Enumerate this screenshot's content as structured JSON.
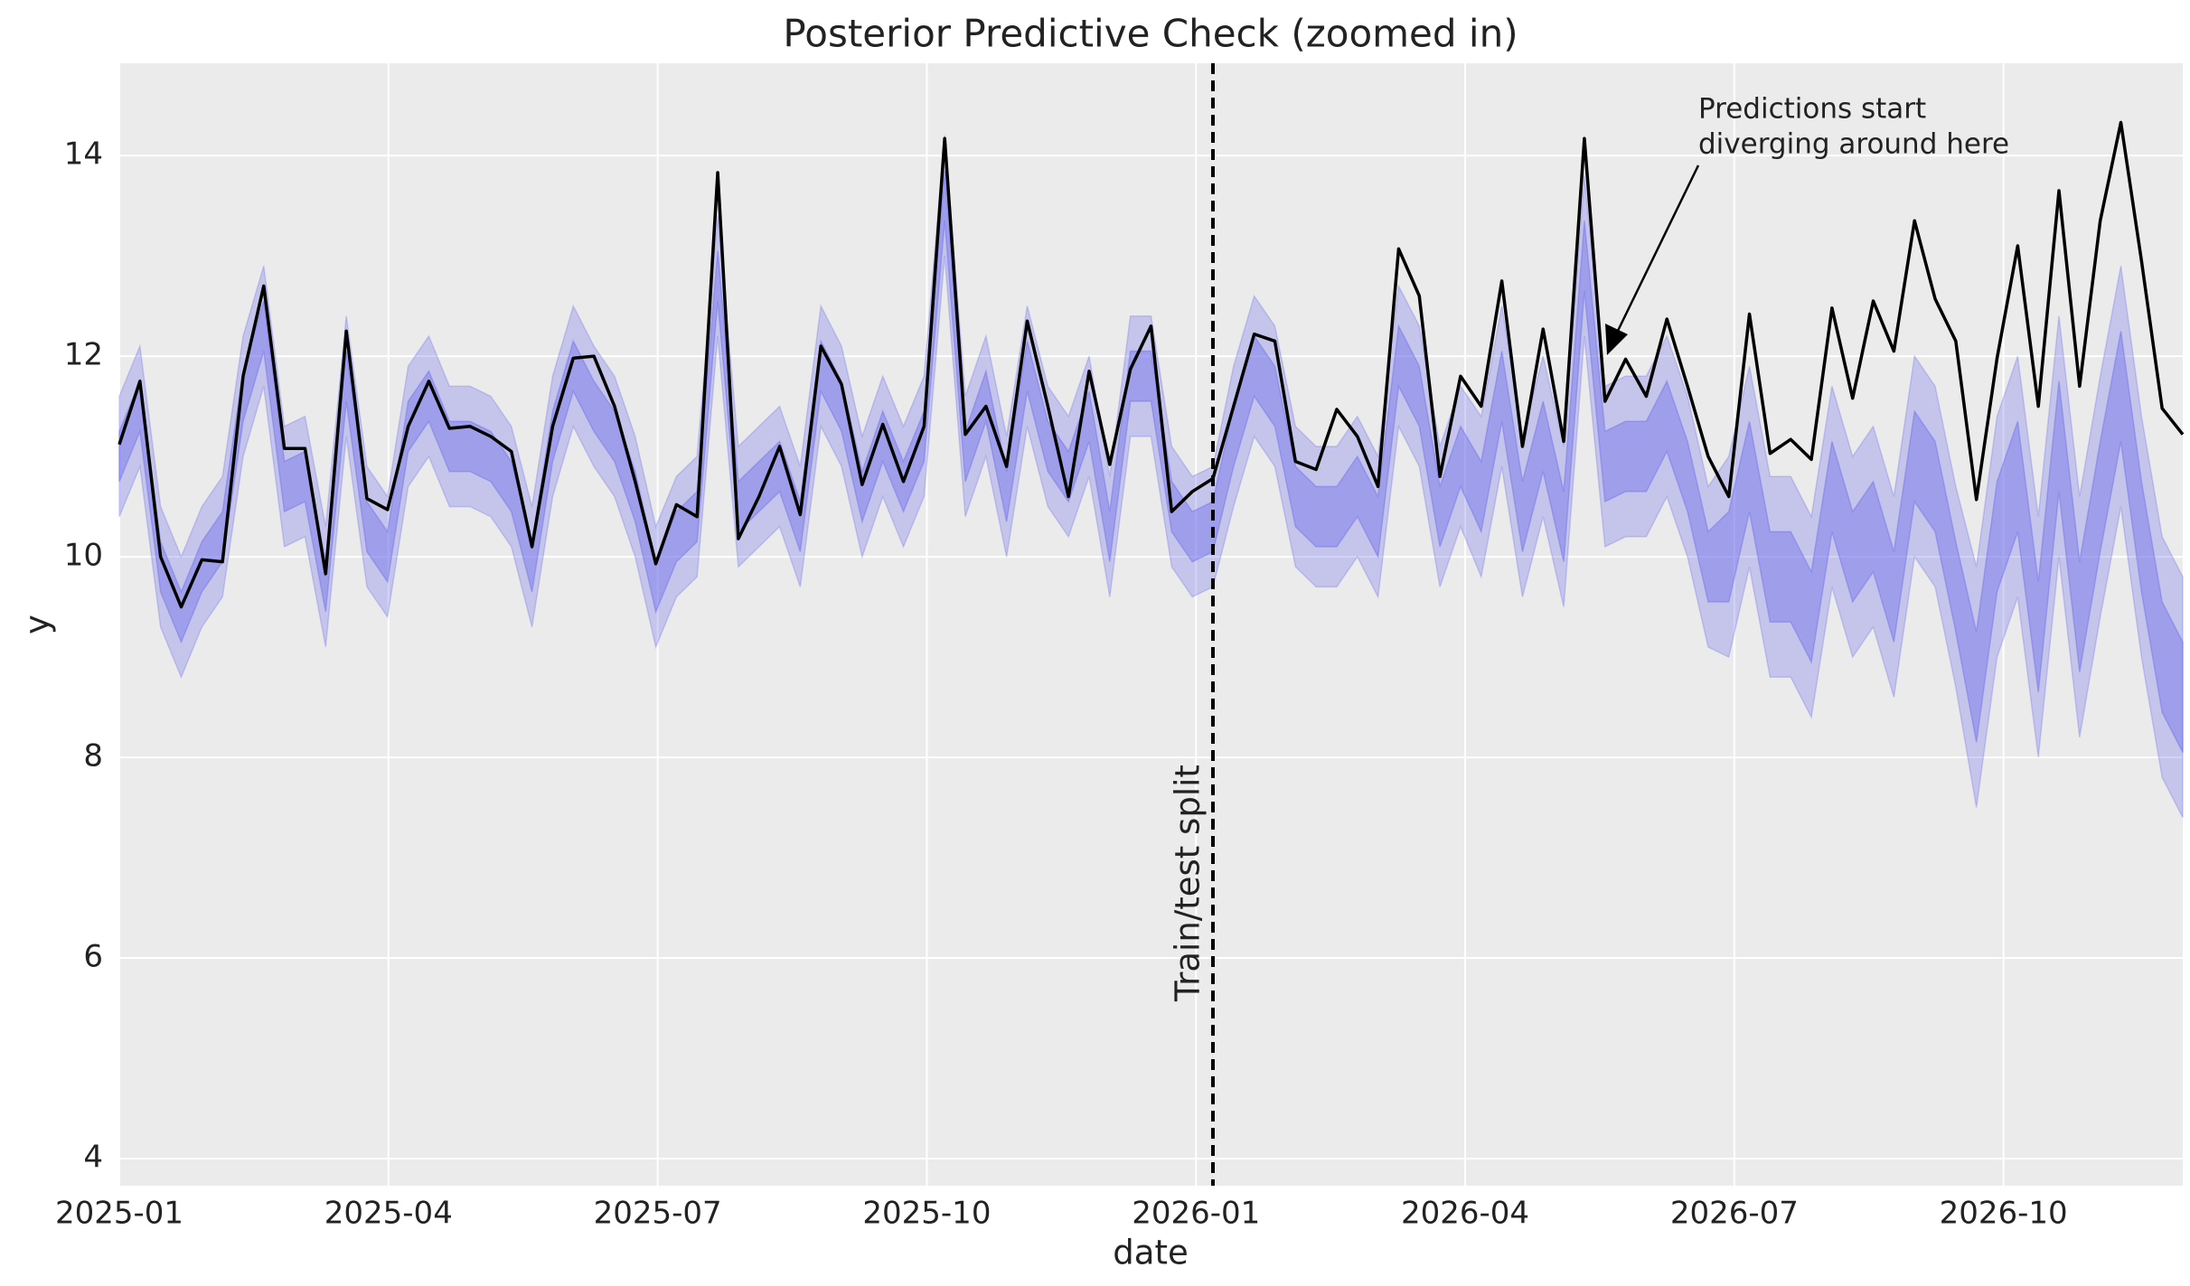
{
  "chart_data": {
    "type": "line",
    "title": "Posterior Predictive Check (zoomed in)",
    "xlabel": "date",
    "ylabel": "y",
    "ylim": [
      3.73,
      14.92
    ],
    "yticks": [
      4,
      6,
      8,
      10,
      12,
      14
    ],
    "xticks": [
      "2025-01",
      "2025-04",
      "2025-07",
      "2025-10",
      "2026-01",
      "2026-04",
      "2026-07",
      "2026-10"
    ],
    "grid": true,
    "background": "#ebebeb",
    "split": {
      "label": "Train/test split",
      "index": 53
    },
    "annotation": {
      "lines": [
        "Predictions start",
        "diverging around here"
      ]
    },
    "bands": [
      {
        "color": "#6e6eea",
        "opacity": 0.3,
        "lower": [
          10.4,
          10.9,
          9.3,
          8.8,
          9.3,
          9.6,
          11.0,
          11.7,
          10.1,
          10.2,
          9.1,
          11.2,
          9.7,
          9.4,
          10.7,
          11.0,
          10.5,
          10.5,
          10.4,
          10.1,
          9.3,
          10.6,
          11.3,
          10.9,
          10.6,
          10.0,
          9.1,
          9.6,
          9.8,
          12.2,
          9.9,
          10.1,
          10.3,
          9.7,
          11.3,
          10.9,
          10.0,
          10.6,
          10.1,
          10.6,
          13.0,
          10.4,
          11.0,
          10.0,
          11.3,
          10.5,
          10.2,
          10.8,
          9.6,
          11.2,
          11.2,
          9.9,
          9.6,
          9.7,
          10.5,
          11.2,
          10.9,
          9.9,
          9.7,
          9.7,
          10.0,
          9.6,
          11.3,
          10.9,
          9.7,
          10.3,
          9.8,
          10.9,
          9.6,
          10.4,
          9.5,
          12.2,
          10.1,
          10.2,
          10.2,
          10.6,
          10.0,
          9.1,
          9.0,
          9.9,
          8.8,
          8.8,
          8.4,
          9.7,
          9.0,
          9.3,
          8.6,
          10.0,
          9.7,
          8.7,
          7.5,
          9.0,
          9.6,
          8.0,
          10.0,
          8.2,
          9.4,
          10.5,
          9.0,
          7.8,
          7.4
        ],
        "upper": [
          11.6,
          12.1,
          10.5,
          10.0,
          10.5,
          10.8,
          12.2,
          12.9,
          11.3,
          11.4,
          10.3,
          12.4,
          10.9,
          10.6,
          11.9,
          12.2,
          11.7,
          11.7,
          11.6,
          11.3,
          10.5,
          11.8,
          12.5,
          12.1,
          11.8,
          11.2,
          10.3,
          10.8,
          11.0,
          13.4,
          11.1,
          11.3,
          11.5,
          10.9,
          12.5,
          12.1,
          11.2,
          11.8,
          11.3,
          11.8,
          14.2,
          11.6,
          12.2,
          11.2,
          12.5,
          11.7,
          11.4,
          12.0,
          10.8,
          12.4,
          12.4,
          11.1,
          10.8,
          10.9,
          11.9,
          12.6,
          12.3,
          11.3,
          11.1,
          11.1,
          11.4,
          11.0,
          12.7,
          12.3,
          11.1,
          11.7,
          11.4,
          12.5,
          11.2,
          12.0,
          11.1,
          13.8,
          11.7,
          11.8,
          11.8,
          12.2,
          11.6,
          10.7,
          11.0,
          11.9,
          10.8,
          10.8,
          10.4,
          11.7,
          11.0,
          11.3,
          10.6,
          12.0,
          11.7,
          10.7,
          9.9,
          11.4,
          12.0,
          10.4,
          12.4,
          10.6,
          11.8,
          12.9,
          11.4,
          10.2,
          9.8
        ]
      },
      {
        "color": "#6e6eea",
        "opacity": 0.45,
        "lower": [
          10.75,
          11.25,
          9.65,
          9.15,
          9.65,
          9.95,
          11.35,
          12.05,
          10.45,
          10.55,
          9.45,
          11.55,
          10.05,
          9.75,
          11.05,
          11.35,
          10.85,
          10.85,
          10.75,
          10.45,
          9.65,
          10.95,
          11.65,
          11.25,
          10.95,
          10.35,
          9.45,
          9.95,
          10.15,
          12.55,
          10.25,
          10.45,
          10.65,
          10.05,
          11.65,
          11.25,
          10.35,
          10.95,
          10.45,
          10.95,
          13.35,
          10.75,
          11.35,
          10.35,
          11.65,
          10.85,
          10.55,
          11.15,
          9.95,
          11.55,
          11.55,
          10.25,
          9.95,
          10.05,
          10.9,
          11.6,
          11.3,
          10.3,
          10.1,
          10.1,
          10.4,
          10.0,
          11.7,
          11.3,
          10.1,
          10.7,
          10.25,
          11.35,
          10.05,
          10.85,
          9.95,
          12.65,
          10.55,
          10.65,
          10.65,
          11.05,
          10.45,
          9.55,
          9.55,
          10.45,
          9.35,
          9.35,
          8.95,
          10.25,
          9.55,
          9.85,
          9.15,
          10.55,
          10.25,
          9.25,
          8.15,
          9.65,
          10.25,
          8.65,
          10.65,
          8.85,
          10.05,
          11.15,
          9.65,
          8.45,
          8.05
        ],
        "upper": [
          11.25,
          11.75,
          10.15,
          9.65,
          10.15,
          10.45,
          11.85,
          12.55,
          10.95,
          11.05,
          9.95,
          12.05,
          10.55,
          10.25,
          11.55,
          11.85,
          11.35,
          11.35,
          11.25,
          10.95,
          10.15,
          11.45,
          12.15,
          11.75,
          11.45,
          10.85,
          9.95,
          10.45,
          10.65,
          13.05,
          10.75,
          10.95,
          11.15,
          10.55,
          12.15,
          11.75,
          10.85,
          11.45,
          10.95,
          11.45,
          13.85,
          11.25,
          11.85,
          10.85,
          12.15,
          11.35,
          11.05,
          11.65,
          10.45,
          12.05,
          12.05,
          10.75,
          10.45,
          10.55,
          11.5,
          12.2,
          11.9,
          10.9,
          10.7,
          10.7,
          11.0,
          10.6,
          12.3,
          11.9,
          10.7,
          11.3,
          10.95,
          12.05,
          10.75,
          11.55,
          10.65,
          13.35,
          11.25,
          11.35,
          11.35,
          11.75,
          11.15,
          10.25,
          10.45,
          11.35,
          10.25,
          10.25,
          9.85,
          11.15,
          10.45,
          10.75,
          10.05,
          11.45,
          11.15,
          10.15,
          9.25,
          10.75,
          11.35,
          9.75,
          11.75,
          9.95,
          11.15,
          12.25,
          10.75,
          9.55,
          9.15
        ]
      }
    ],
    "series": [
      {
        "color": "#000000",
        "values": [
          11.12,
          11.75,
          10.0,
          9.5,
          9.97,
          9.95,
          11.8,
          12.7,
          11.08,
          11.08,
          9.83,
          12.25,
          10.58,
          10.47,
          11.3,
          11.75,
          11.28,
          11.3,
          11.2,
          11.05,
          10.1,
          11.3,
          11.98,
          12.0,
          11.5,
          10.75,
          9.93,
          10.52,
          10.4,
          13.83,
          10.18,
          10.6,
          11.1,
          10.42,
          12.1,
          11.72,
          10.72,
          11.32,
          10.75,
          11.3,
          14.17,
          11.22,
          11.5,
          10.9,
          12.35,
          11.5,
          10.6,
          11.85,
          10.92,
          11.87,
          12.3,
          10.45,
          10.65,
          10.78,
          11.5,
          12.22,
          12.15,
          10.95,
          10.87,
          11.47,
          11.2,
          10.7,
          13.07,
          12.6,
          10.8,
          11.8,
          11.5,
          12.75,
          11.1,
          12.27,
          11.15,
          14.17,
          11.55,
          11.97,
          11.6,
          12.37,
          11.7,
          11.0,
          10.6,
          12.42,
          11.03,
          11.17,
          10.97,
          12.48,
          11.58,
          12.55,
          12.05,
          13.35,
          12.57,
          12.15,
          10.57,
          11.98,
          13.1,
          11.5,
          13.65,
          11.7,
          13.35,
          14.33,
          12.95,
          11.48,
          11.22
        ]
      }
    ]
  }
}
